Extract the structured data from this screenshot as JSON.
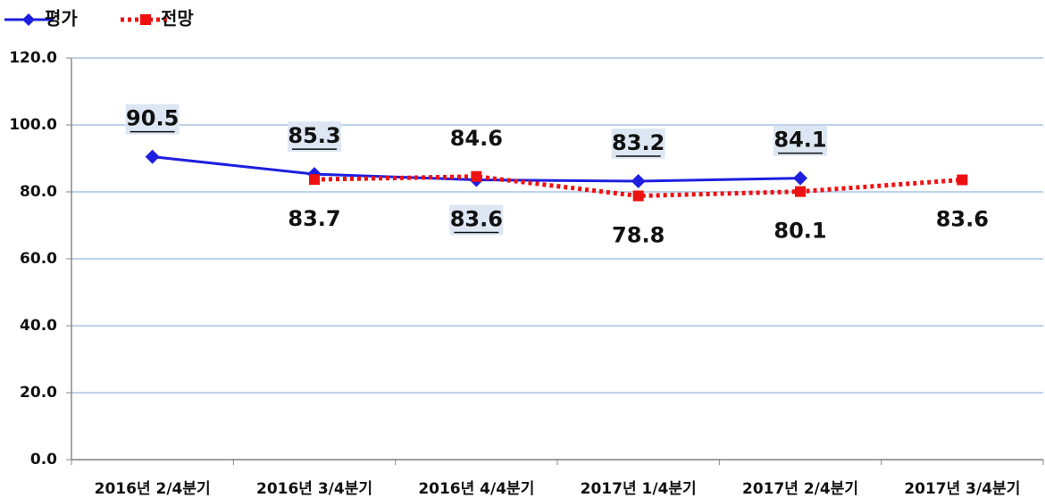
{
  "chart_data": {
    "type": "line",
    "categories": [
      "2016년 2/4분기",
      "2016년 3/4분기",
      "2016년 4/4분기",
      "2017년 1/4분기",
      "2017년 2/4분기",
      "2017년 3/4분기"
    ],
    "series": [
      {
        "name": "평가",
        "color": "#1f1fe0",
        "values": [
          90.5,
          85.3,
          83.6,
          83.2,
          84.1,
          null
        ]
      },
      {
        "name": "전망",
        "color": "#ee1111",
        "values": [
          null,
          83.7,
          84.6,
          78.8,
          80.1,
          83.6
        ]
      }
    ],
    "ylim": [
      0,
      120
    ],
    "yticks": [
      {
        "value": 0,
        "label": "0.0"
      },
      {
        "value": 20,
        "label": "20.0"
      },
      {
        "value": 40,
        "label": "40.0"
      },
      {
        "value": 60,
        "label": "60.0"
      },
      {
        "value": 80,
        "label": "80.0"
      },
      {
        "value": 100,
        "label": "100.0"
      },
      {
        "value": 120,
        "label": "120.0"
      }
    ],
    "grid": true,
    "legend": "top-left"
  }
}
